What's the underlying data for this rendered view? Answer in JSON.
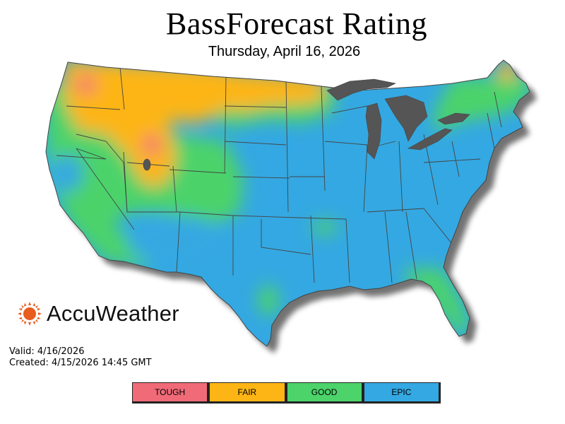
{
  "title": "BassForecast Rating",
  "date": "Thursday, April 16, 2026",
  "brand": {
    "name": "AccuWeather",
    "icon": "sun-icon",
    "color": "#e85c1c"
  },
  "valid_text": "Valid: 4/16/2026",
  "created_text": "Created: 4/15/2026 14:45 GMT",
  "legend": [
    {
      "label": "TOUGH",
      "color": "#f06a78"
    },
    {
      "label": "FAIR",
      "color": "#fdb515"
    },
    {
      "label": "GOOD",
      "color": "#4cd36a"
    },
    {
      "label": "EPIC",
      "color": "#34a8e2"
    }
  ],
  "map": {
    "land_color": "#34a8e2",
    "lake_color": "#555555",
    "border_color": "#444444"
  }
}
